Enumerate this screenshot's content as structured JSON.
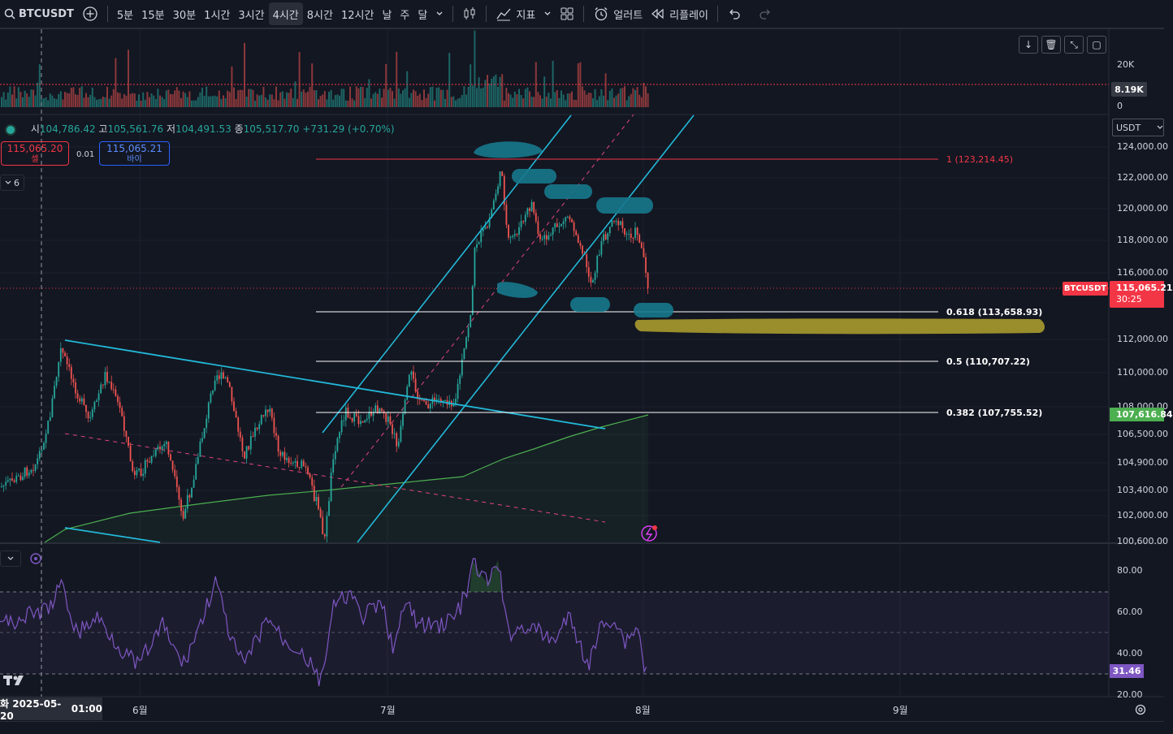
{
  "toolbar": {
    "symbol": "BTCUSDT",
    "intervals": [
      "5분",
      "15분",
      "30분",
      "1시간",
      "3시간",
      "4시간",
      "8시간",
      "12시간",
      "날",
      "주",
      "달"
    ],
    "active_interval": "4시간",
    "indicators_label": "지표",
    "alert_label": "얼러트",
    "replay_label": "리플레이"
  },
  "legend": {
    "open_label": "시",
    "open": "104,786.42",
    "high_label": "고",
    "high": "105,561.76",
    "low_label": "저",
    "low": "104,491.53",
    "close_label": "종",
    "close": "105,517.70",
    "change": "+731.29 (+0.70%)"
  },
  "trade": {
    "sell_price": "115,065.20",
    "sell_label": "셀",
    "spread": "0.01",
    "buy_price": "115,065.21",
    "buy_label": "바이",
    "indicator_count": "6"
  },
  "currency": "USDT",
  "volume_axis": {
    "top": "20K",
    "current": "8.19K",
    "zero": "0"
  },
  "price_axis": [
    "124,000.00",
    "122,000.00",
    "120,000.00",
    "118,000.00",
    "116,000.00",
    "112,000.00",
    "110,000.00",
    "108,000.00",
    "106,500.00",
    "104,900.00",
    "103,400.00",
    "102,000.00",
    "100,600.00"
  ],
  "current_price": {
    "symbol": "BTCUSDT",
    "price": "115,065.21",
    "countdown": "30:25"
  },
  "ma_price": "107,616.84",
  "fib_levels": [
    {
      "label": "1 (123,214.45)",
      "color": "#f23645"
    },
    {
      "label": "0.618 (113,658.93)",
      "color": "#ffffff"
    },
    {
      "label": "0.5 (110,707.22)",
      "color": "#ffffff"
    },
    {
      "label": "0.382 (107,755.52)",
      "color": "#ffffff"
    }
  ],
  "rsi_axis": [
    "80.00",
    "60.00",
    "40.00",
    "20.00"
  ],
  "rsi_value": "31.46",
  "time_axis": {
    "cursor_date": "화 2025-05-20",
    "cursor_time": "01:00",
    "months": [
      "6월",
      "7월",
      "8월",
      "9월"
    ]
  },
  "colors": {
    "up": "#26a69a",
    "down": "#ef5350",
    "channel": "#22b8d8",
    "ma": "#4caf50",
    "rsi": "#7e57c2",
    "fib_top": "#f23645",
    "highlight": "#a89a2e"
  }
}
